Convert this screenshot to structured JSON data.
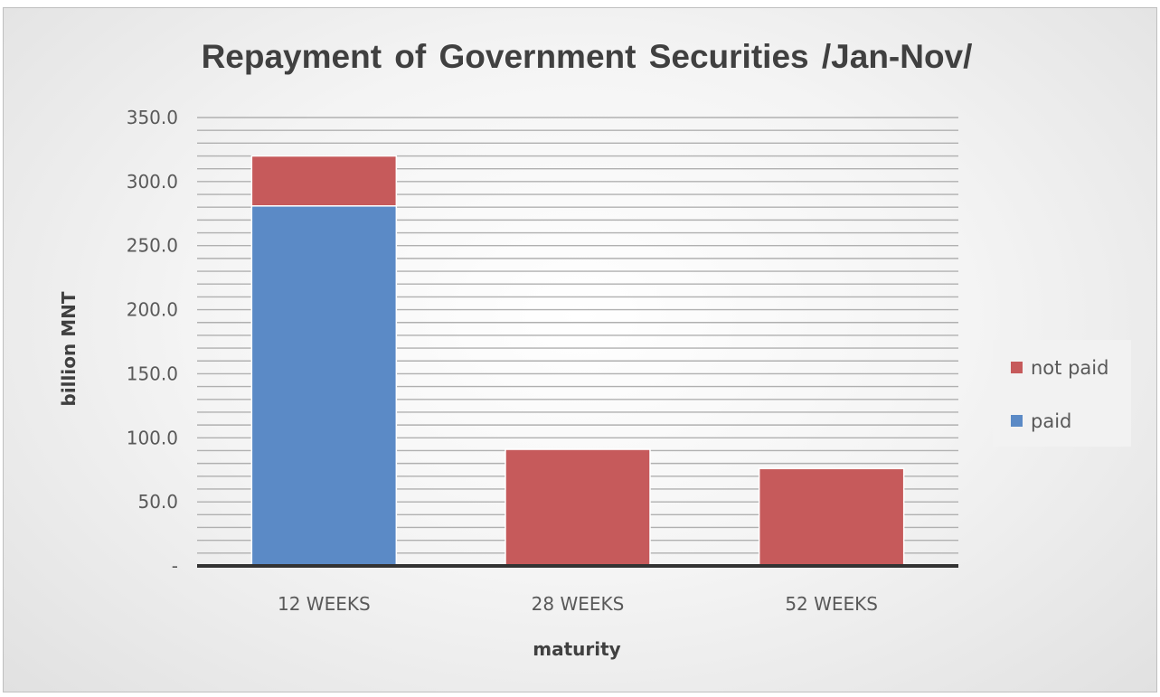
{
  "chart_data": {
    "type": "bar",
    "stacked": true,
    "title": "Repayment of Government Securities /Jan-Nov/",
    "xlabel": "maturity",
    "ylabel": "billion MNT",
    "categories": [
      "12 WEEKS",
      "28 WEEKS",
      "52 WEEKS"
    ],
    "series": [
      {
        "name": "paid",
        "values": [
          281.0,
          0.0,
          0.0
        ],
        "color": "#5b8ac6"
      },
      {
        "name": "not paid",
        "values": [
          39.0,
          91.0,
          76.0
        ],
        "color": "#c65a5b"
      }
    ],
    "ylim": [
      0,
      350
    ],
    "yticks": [
      0,
      50,
      100,
      150,
      200,
      250,
      300,
      350
    ],
    "ytick_labels": [
      "-",
      "50.0",
      "100.0",
      "150.0",
      "200.0",
      "250.0",
      "300.0",
      "350.0"
    ],
    "grid": true,
    "legend_position": "right",
    "legend_order": [
      "not paid",
      "paid"
    ],
    "colors": {
      "axis": "#333333",
      "gridline": "#b0b0b0",
      "legend_background": "#f2f2f2"
    }
  }
}
